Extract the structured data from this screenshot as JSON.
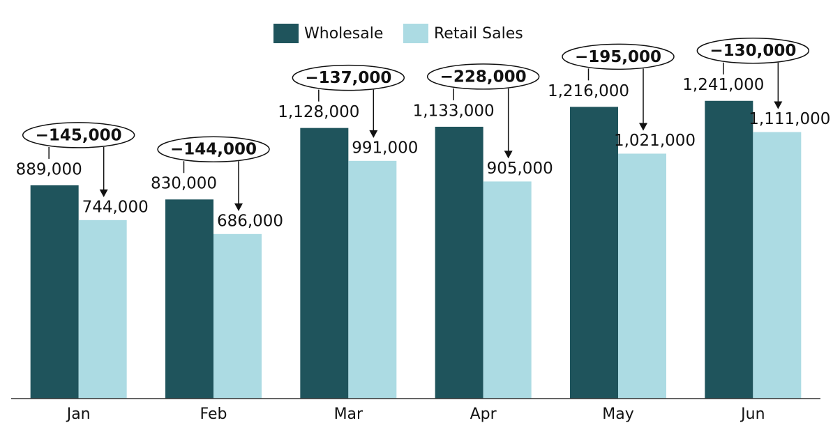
{
  "chart_data": {
    "type": "bar",
    "categories": [
      "Jan",
      "Feb",
      "Mar",
      "Apr",
      "May",
      "Jun"
    ],
    "series": [
      {
        "name": "Wholesale",
        "color": "#1f545c",
        "values": [
          889000,
          830000,
          1128000,
          1133000,
          1216000,
          1241000
        ],
        "value_labels": [
          "889,000",
          "830,000",
          "1,128,000",
          "1,133,000",
          "1,216,000",
          "1,241,000"
        ]
      },
      {
        "name": "Retail Sales",
        "color": "#acdbe3",
        "values": [
          744000,
          686000,
          991000,
          905000,
          1021000,
          1111000
        ],
        "value_labels": [
          "744,000",
          "686,000",
          "991,000",
          "905,000",
          "1,021,000",
          "1,111,000"
        ]
      }
    ],
    "annotations": [
      {
        "value": -145000,
        "label": "−145,000"
      },
      {
        "value": -144000,
        "label": "−144,000"
      },
      {
        "value": -137000,
        "label": "−137,000"
      },
      {
        "value": -228000,
        "label": "−228,000"
      },
      {
        "value": -195000,
        "label": "−195,000"
      },
      {
        "value": -130000,
        "label": "−130,000"
      }
    ],
    "ylim": [
      0,
      1400000
    ],
    "legend": "top"
  }
}
